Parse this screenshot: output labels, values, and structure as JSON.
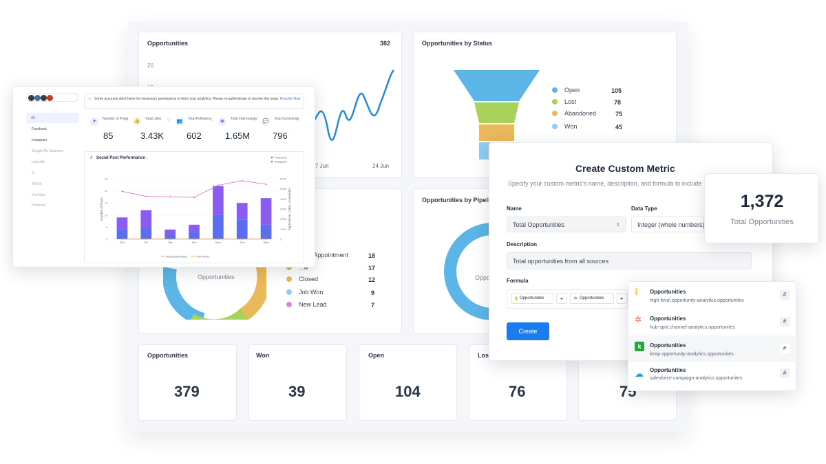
{
  "opportunities_chart": {
    "title": "Opportunities",
    "total": "382",
    "y_tick_top": "20",
    "y_tick_mid": "15",
    "x_ticks": [
      "7 Jun",
      "24 Jun"
    ]
  },
  "status_funnel": {
    "title": "Opportunities by Status",
    "items": [
      {
        "label": "Open",
        "value": "105",
        "color": "#5bb5e6"
      },
      {
        "label": "Lost",
        "value": "78",
        "color": "#a8d35a"
      },
      {
        "label": "Abandoned",
        "value": "75",
        "color": "#e9b95b"
      },
      {
        "label": "Won",
        "value": "45",
        "color": "#8fcdf2"
      }
    ]
  },
  "pipeline_chart": {
    "title": "Opportunities by Pipeline",
    "donut_label": "Opportunities",
    "left_donut_label": "Opportunities",
    "legend": [
      {
        "label": "...led Appointment",
        "value": "18",
        "color": "#5bb5e6"
      },
      {
        "label": "...w",
        "value": "17",
        "color": "#a8d35a"
      },
      {
        "label": "Closed",
        "value": "12",
        "color": "#e9b95b"
      },
      {
        "label": "Job Won",
        "value": "9",
        "color": "#8fcdf2"
      },
      {
        "label": "New Lead",
        "value": "7",
        "color": "#d58bd0"
      }
    ]
  },
  "kpi_cards": [
    {
      "label": "Opportunities",
      "value": "379"
    },
    {
      "label": "Won",
      "value": "39"
    },
    {
      "label": "Open",
      "value": "104"
    },
    {
      "label": "Lost",
      "value": "76"
    },
    {
      "label": "",
      "value": "75"
    }
  ],
  "social_panel": {
    "warning": "Some accounts don't have the necessary permissions to fetch your analytics. Please re-authenticate to resolve this issue.",
    "warning_link": "Resolve Now",
    "nav": [
      {
        "label": "All",
        "active": true,
        "dim": false
      },
      {
        "label": "Facebook",
        "active": false,
        "dim": false
      },
      {
        "label": "Instagram",
        "active": false,
        "dim": false
      },
      {
        "label": "Google My Business",
        "active": false,
        "dim": true
      },
      {
        "label": "LinkedIn",
        "active": false,
        "dim": true
      },
      {
        "label": "X",
        "active": false,
        "dim": true
      },
      {
        "label": "TikTok",
        "active": false,
        "dim": true
      },
      {
        "label": "YouTube",
        "active": false,
        "dim": true
      },
      {
        "label": "Pinterest",
        "active": false,
        "dim": true
      }
    ],
    "stats": [
      {
        "label": "Number of Posts",
        "value": "85",
        "icon": "send-icon",
        "glyph": "➤"
      },
      {
        "label": "Total Likes",
        "value": "3.43K",
        "icon": "thumbs-up-icon",
        "glyph": "👍"
      },
      {
        "label": "Total Followers",
        "value": "602",
        "icon": "users-icon",
        "glyph": "👥"
      },
      {
        "label": "Total Impressions",
        "value": "1.65M",
        "icon": "eye-icon",
        "glyph": "◉"
      },
      {
        "label": "Total Comments",
        "value": "796",
        "icon": "comment-icon",
        "glyph": "💬"
      }
    ],
    "chart_title": "Social Post Performance"
  },
  "chart_data": {
    "type": "bar",
    "title": "Social Post Performance",
    "categories": [
      "Thu",
      "Fri",
      "Sat",
      "Sun",
      "Mon",
      "Tue",
      "Wed"
    ],
    "ylabel": "Number of Posts",
    "y2label": "Impressions, Likes, Comments",
    "ylim": [
      0,
      25
    ],
    "y_ticks": [
      "0",
      "5",
      "10",
      "15",
      "20",
      "25"
    ],
    "y2lim": [
      0,
      600
    ],
    "y2_ticks": [
      "0",
      "100K",
      "200K",
      "300K",
      "400K",
      "500K",
      "600K"
    ],
    "series": [
      {
        "name": "Facebook",
        "color": "#5b6ef0",
        "values": [
          4,
          5,
          2,
          3,
          10,
          8,
          6
        ]
      },
      {
        "name": "Instagram",
        "color": "#8a5cf0",
        "values": [
          5,
          7,
          2,
          3,
          12,
          7,
          11
        ]
      },
      {
        "name": "Impressions",
        "color": "#d36cc6",
        "type": "line",
        "values": [
          475,
          425,
          420,
          415,
          535,
          580,
          545
        ]
      },
      {
        "name": "Likes",
        "color": "#a0a8b4",
        "type": "line",
        "values": [
          2,
          2,
          2,
          2,
          2,
          2,
          2
        ]
      },
      {
        "name": "Comments",
        "color": "#f0a040",
        "type": "line",
        "values": [
          1,
          1,
          1,
          1,
          1,
          1,
          1
        ]
      }
    ],
    "legend": [
      "Impressions",
      "Likes",
      "Comments"
    ],
    "legend_top": [
      "Facebook",
      "Instagram"
    ]
  },
  "custom_metric": {
    "title": "Create Custom Metric",
    "subtitle": "Specify your custom metric's name, description, and formula to include",
    "name_label": "Name",
    "name_value": "Total Opportunities",
    "type_label": "Data Type",
    "type_value": "Integer (whole numbers)",
    "desc_label": "Description",
    "desc_value": "Total opportunities from all sources",
    "formula_label": "Formula",
    "chip1": "Opportunities",
    "chip2": "Opportunities",
    "plus": "+",
    "create_label": "Create"
  },
  "total_card": {
    "value": "1,372",
    "label": "Total Opportunities"
  },
  "sources": [
    {
      "name": "Opportunities",
      "path": "high-level.opportunity-analytics.opportunites",
      "icon": "highlevel-icon",
      "color": "#f0b429"
    },
    {
      "name": "Opportunities",
      "path": "hub-spot.channel-analytics.opportunites",
      "icon": "hubspot-icon",
      "color": "#f5623c"
    },
    {
      "name": "Opportunities",
      "path": "keap.opportunity-analytics.opportunites",
      "icon": "keap-icon",
      "color": "#27a53a"
    },
    {
      "name": "Opportunities",
      "path": "salesforce.campaign-analytics.opportunites",
      "icon": "salesforce-icon",
      "color": "#1b9de0"
    }
  ],
  "hash": "#"
}
